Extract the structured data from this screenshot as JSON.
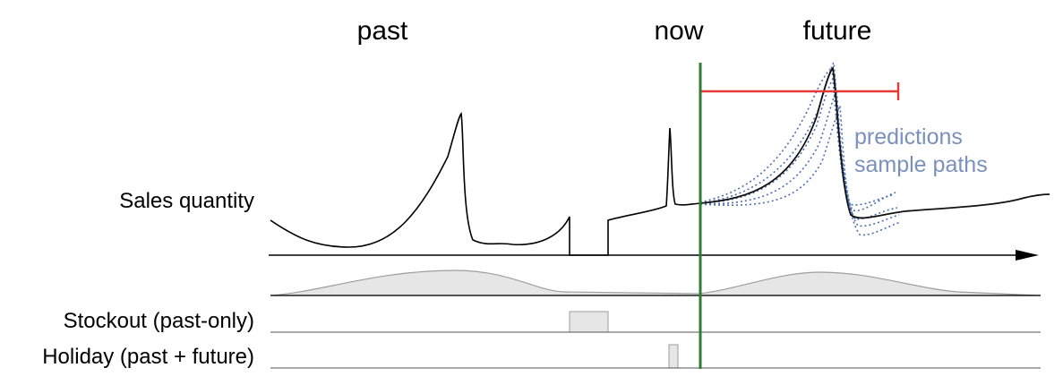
{
  "periods": {
    "past": "past",
    "now": "now",
    "future": "future"
  },
  "rows": {
    "sales": "Sales quantity",
    "stockout": "Stockout (past-only)",
    "holiday": "Holiday (past + future)"
  },
  "annotation": {
    "line1": "predictions",
    "line2": "sample paths"
  },
  "colors": {
    "now_line": "#2e7d32",
    "horizon": "#e53935",
    "sample_paths": "#4a6fb0",
    "annotation": "#7a91bd",
    "band_fill": "#e6e6e6",
    "band_stroke": "#9e9e9e"
  }
}
